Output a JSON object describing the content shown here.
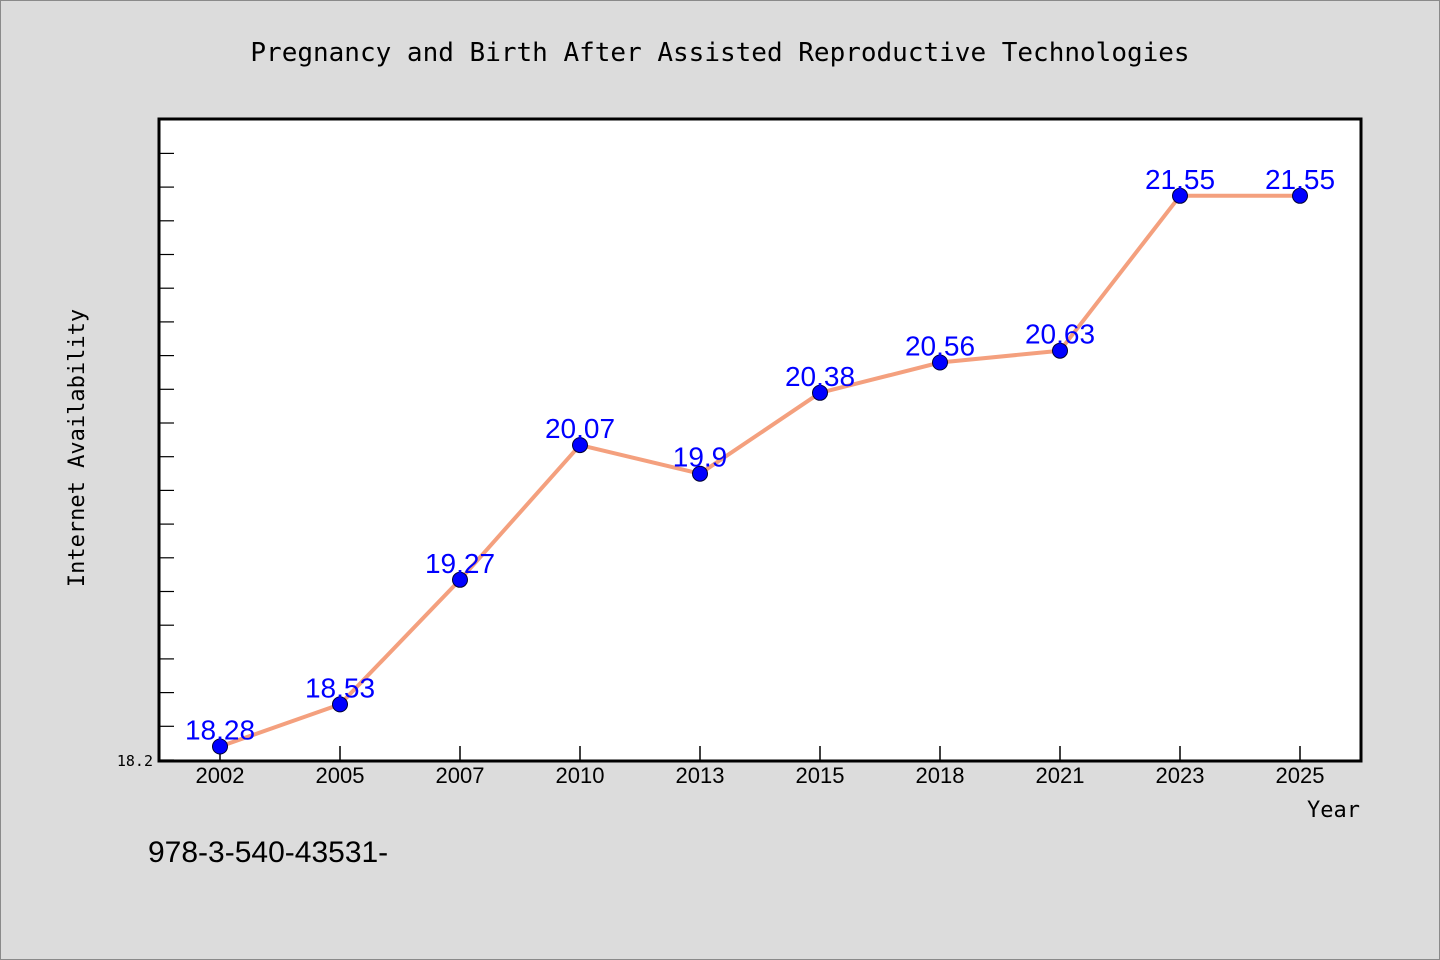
{
  "chart_data": {
    "type": "line",
    "title": "Pregnancy and Birth After Assisted Reproductive Technologies",
    "xlabel": "Year",
    "ylabel": "Internet Availability",
    "categories": [
      "2002",
      "2005",
      "2007",
      "2010",
      "2013",
      "2015",
      "2018",
      "2021",
      "2023",
      "2025"
    ],
    "series": [
      {
        "values": [
          18.28,
          18.53,
          19.27,
          20.07,
          19.9,
          20.38,
          20.56,
          20.63,
          21.55,
          21.55
        ]
      }
    ],
    "data_labels": [
      "18.28",
      "18.53",
      "19.27",
      "20.07",
      "19.9",
      "20.38",
      "20.56",
      "20.63",
      "21.55",
      "21.55"
    ],
    "y_min_label": "18.2",
    "ylim": [
      18.2,
      22.0
    ],
    "grid": false,
    "line_color": "#f4a07e",
    "marker_color": "#0000ff",
    "label_color": "#0000ff"
  },
  "footer": {
    "text": "978-3-540-43531-"
  }
}
